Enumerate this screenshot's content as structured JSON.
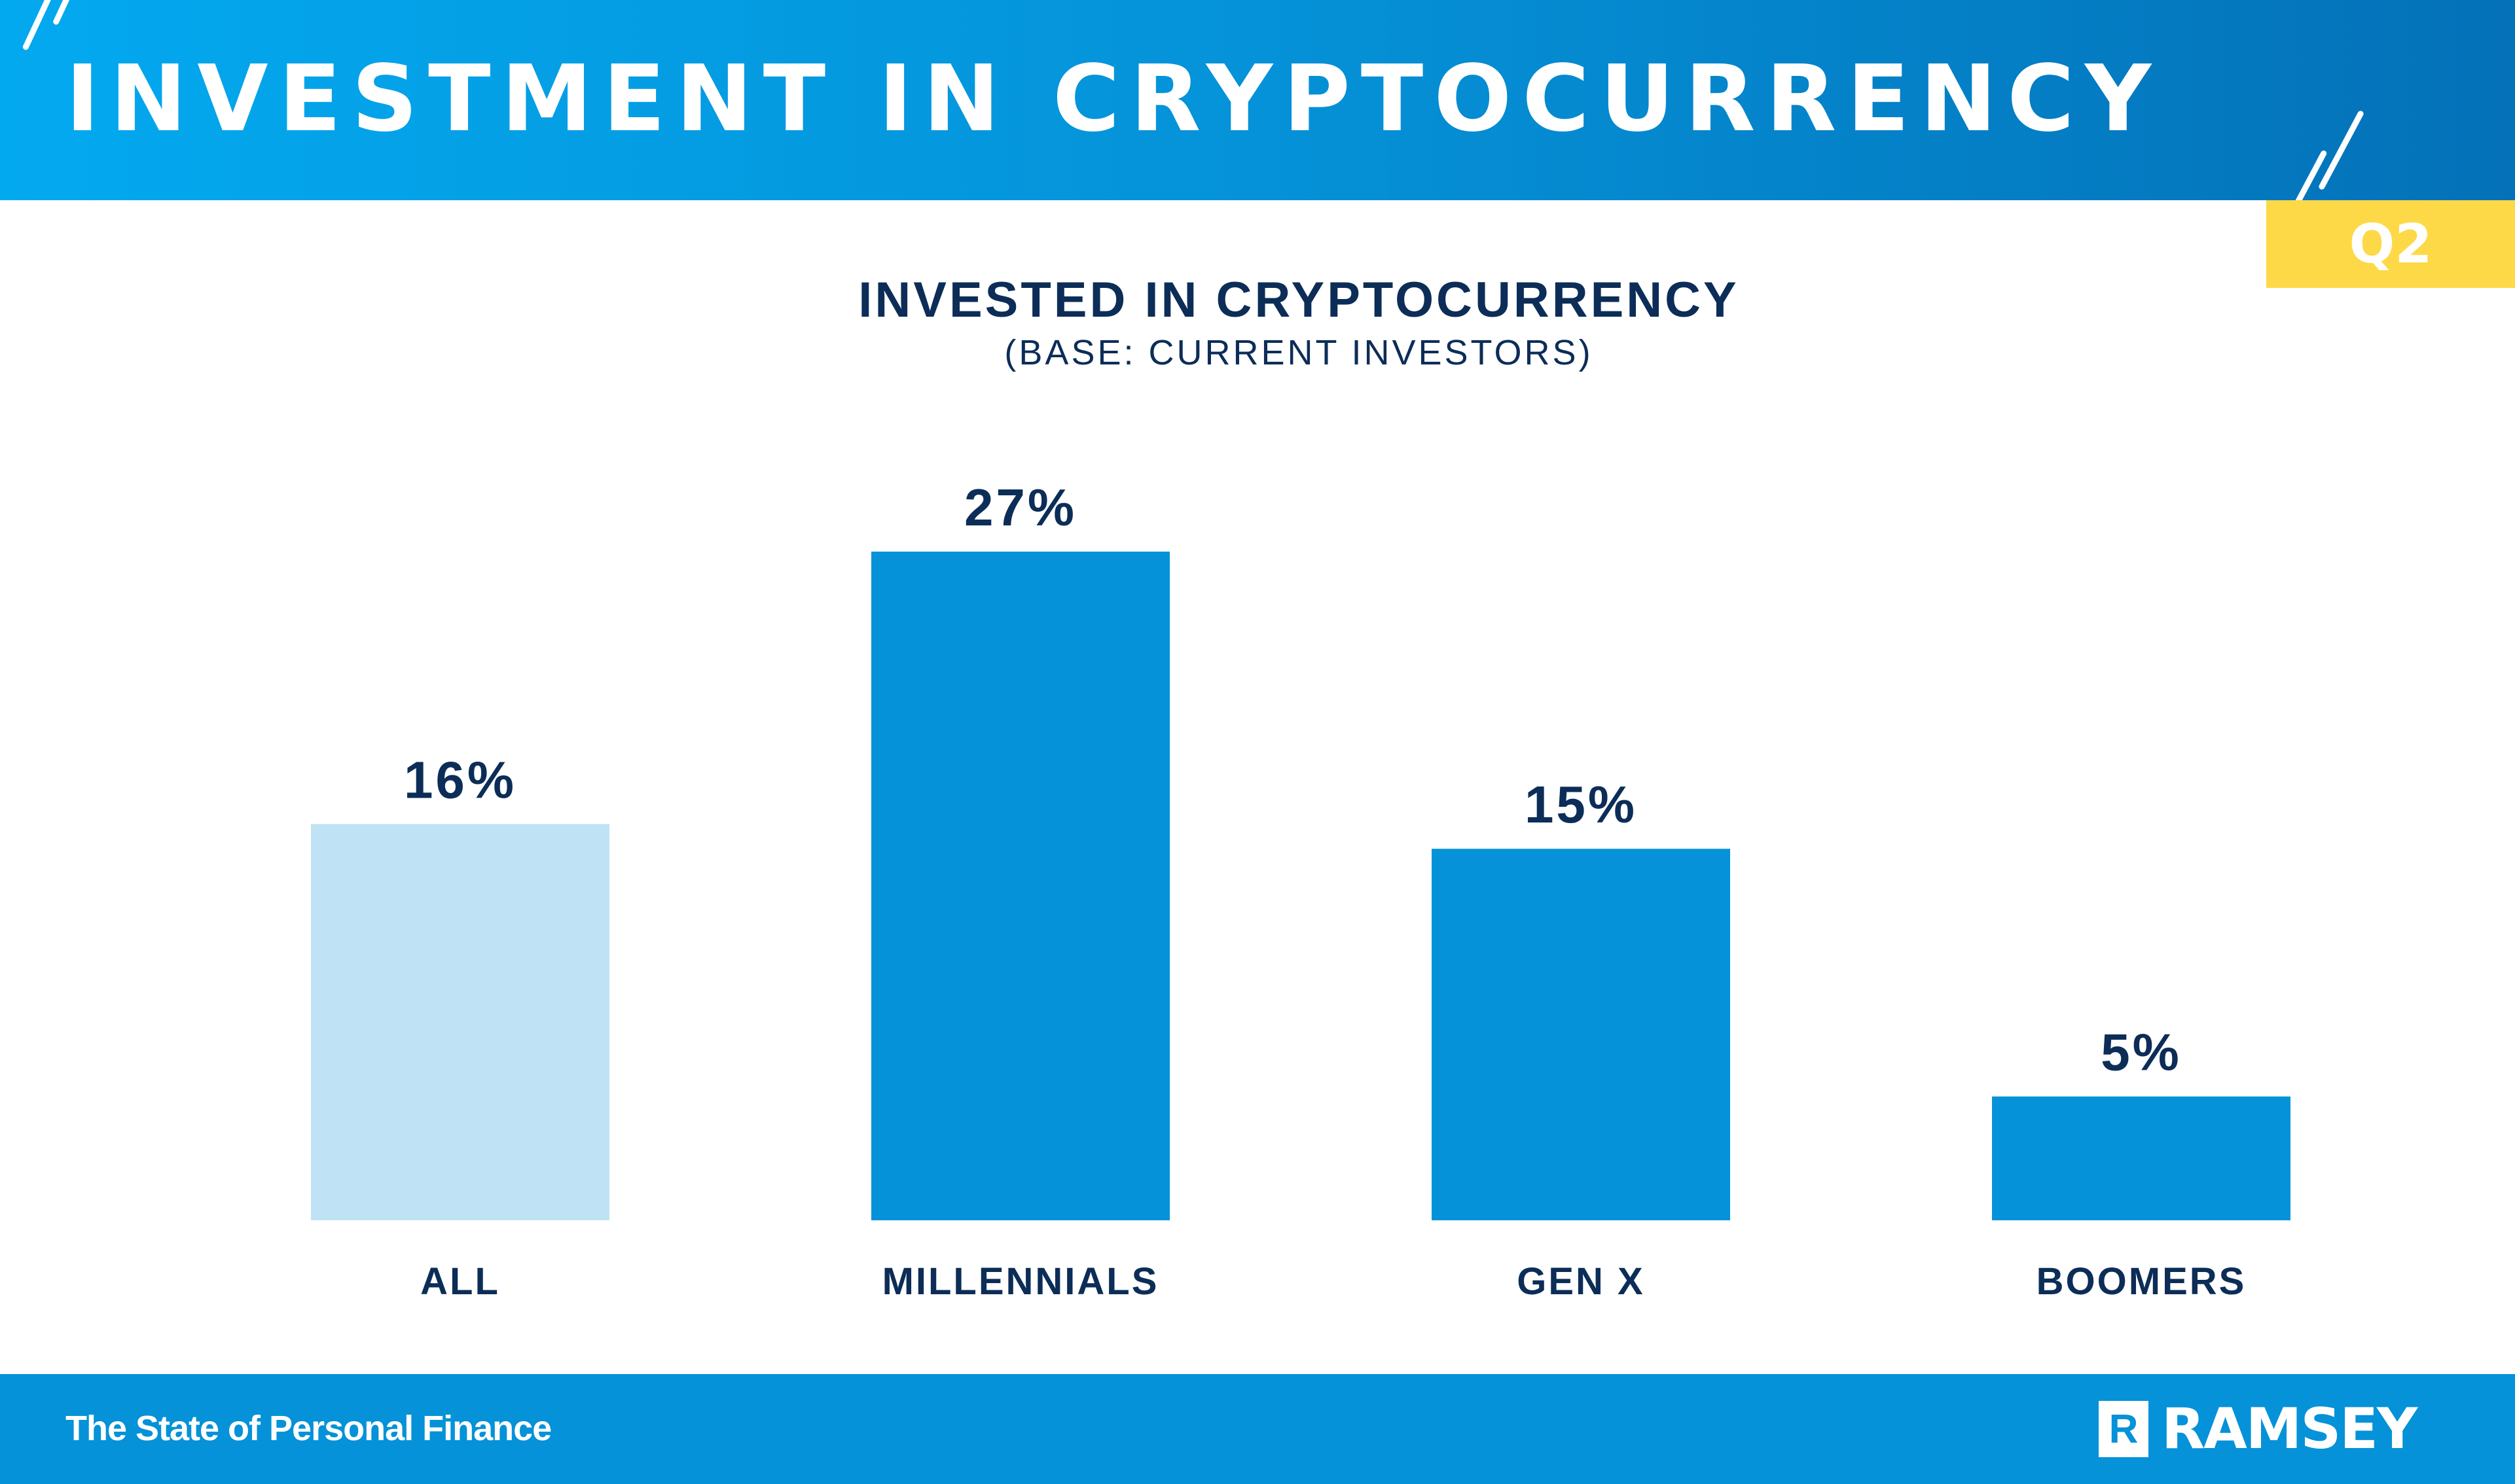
{
  "header": {
    "title": "INVESTMENT IN CRYPTOCURRENCY",
    "badge": "Q2"
  },
  "colors": {
    "header_start": "#03a9ef",
    "header_end": "#0471b8",
    "bar_highlight": "#0592d8",
    "bar_all": "#bfe3f4",
    "text": "#0c2d57",
    "badge": "#fdd948"
  },
  "chart_data": {
    "type": "bar",
    "title": "INVESTED IN CRYPTOCURRENCY",
    "subtitle": "(BASE: CURRENT INVESTORS)",
    "categories": [
      "ALL",
      "MILLENNIALS",
      "GEN X",
      "BOOMERS"
    ],
    "values": [
      16,
      27,
      15,
      5
    ],
    "data_labels": [
      "16%",
      "27%",
      "15%",
      "5%"
    ],
    "unit": "%",
    "bar_colors": [
      "#bfe3f4",
      "#0592d8",
      "#0592d8",
      "#0592d8"
    ],
    "ylim": [
      0,
      27
    ],
    "grid": false,
    "legend": "none"
  },
  "footer": {
    "text": "The State of Personal Finance",
    "logo": "RAMSEY",
    "logo_mark": "R"
  }
}
